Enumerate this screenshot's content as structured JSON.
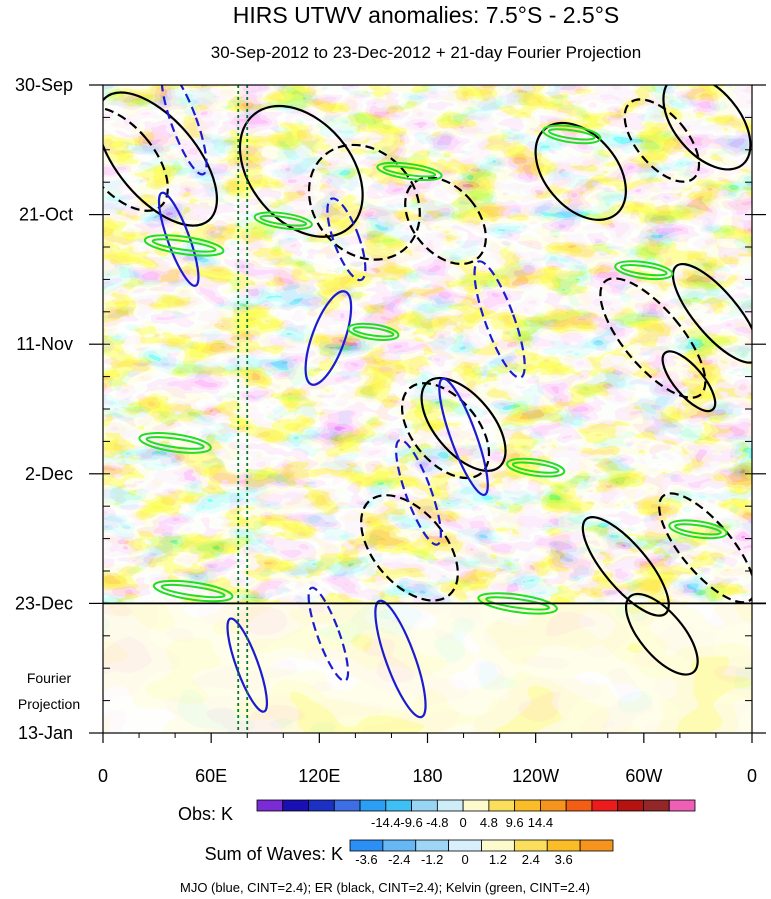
{
  "chart_data": {
    "type": "heatmap",
    "title": "HIRS UTWV anomalies: 7.5°S - 2.5°S",
    "subtitle": "30-Sep-2012 to 23-Dec-2012 + 21-day Fourier Projection",
    "x_ticks": [
      "0",
      "60E",
      "120E",
      "180",
      "120W",
      "60W",
      "0"
    ],
    "x_values_deg_east": [
      0,
      60,
      120,
      180,
      240,
      300,
      360
    ],
    "y_ticks": [
      "30-Sep",
      "21-Oct",
      "11-Nov",
      "2-Dec",
      "23-Dec",
      "13-Jan"
    ],
    "y_values_day": [
      0,
      21,
      42,
      63,
      84,
      105
    ],
    "projection_label": [
      "Fourier",
      "Projection"
    ],
    "projection_start_day": 84,
    "reference_lines_deg_east": [
      75,
      80
    ],
    "obs_colorbar": {
      "label": "Obs: K",
      "levels": [
        -14.4,
        -9.6,
        -4.8,
        0,
        4.8,
        9.6,
        14.4
      ],
      "level_labels": [
        "-14.4",
        "-9.6",
        "-4.8",
        "0",
        "4.8",
        "9.6",
        "14.4"
      ],
      "colors": [
        "#7a2bd6",
        "#1a0fb3",
        "#1c31c4",
        "#3d6ee6",
        "#2b9ff5",
        "#3fc0f5",
        "#98d5f5",
        "#cdeef9",
        "#fdfbce",
        "#fbdf5c",
        "#fbbd27",
        "#f7941d",
        "#f35e14",
        "#ec1c1c",
        "#b51212",
        "#932626",
        "#ee5fb5"
      ]
    },
    "waves_colorbar": {
      "label": "Sum of Waves: K",
      "levels": [
        -3.6,
        -2.4,
        -1.2,
        0,
        1.2,
        2.4,
        3.6
      ],
      "level_labels": [
        "-3.6",
        "-2.4",
        "-1.2",
        "0",
        "1.2",
        "2.4",
        "3.6"
      ],
      "colors": [
        "#2b8ff5",
        "#66b8f5",
        "#9fd5f5",
        "#d7f0fb",
        "#fdfbce",
        "#fbdf5c",
        "#fbbd27",
        "#f7941d"
      ]
    },
    "contour_legend": "MJO (blue, CINT=2.4); ER (black, CINT=2.4); Kelvin (green, CINT=2.4)",
    "series": [
      {
        "name": "MJO",
        "color": "#1c1ccf",
        "contour_interval": 2.4
      },
      {
        "name": "ER",
        "color": "#000000",
        "contour_interval": 2.4
      },
      {
        "name": "Kelvin",
        "color": "#22dd22",
        "contour_interval": 2.4
      }
    ],
    "observed_period": {
      "start": "30-Sep-2012",
      "end": "23-Dec-2012"
    },
    "features": [
      {
        "type": "ER",
        "sign": "pos",
        "lon": 30,
        "day": 12,
        "w": 22,
        "h": 13,
        "tilt": -1
      },
      {
        "type": "ER",
        "sign": "neg",
        "lon": 10,
        "day": 12,
        "w": 18,
        "h": 10,
        "tilt": -1
      },
      {
        "type": "ER",
        "sign": "pos",
        "lon": 110,
        "day": 14,
        "w": 28,
        "h": 12,
        "tilt": -1
      },
      {
        "type": "ER",
        "sign": "neg",
        "lon": 145,
        "day": 19,
        "w": 28,
        "h": 10,
        "tilt": -1
      },
      {
        "type": "ER",
        "sign": "pos",
        "lon": 265,
        "day": 14,
        "w": 20,
        "h": 9,
        "tilt": -1
      },
      {
        "type": "ER",
        "sign": "pos",
        "lon": 335,
        "day": 6,
        "w": 18,
        "h": 9,
        "tilt": -1
      },
      {
        "type": "ER",
        "sign": "neg",
        "lon": 310,
        "day": 9,
        "w": 14,
        "h": 8,
        "tilt": -1
      },
      {
        "type": "ER",
        "sign": "neg",
        "lon": 190,
        "day": 22,
        "w": 18,
        "h": 8,
        "tilt": -1
      },
      {
        "type": "ER",
        "sign": "pos",
        "lon": 340,
        "day": 37,
        "w": 12,
        "h": 10,
        "tilt": -1
      },
      {
        "type": "ER",
        "sign": "neg",
        "lon": 305,
        "day": 41,
        "w": 16,
        "h": 12,
        "tilt": -1
      },
      {
        "type": "ER",
        "sign": "pos",
        "lon": 200,
        "day": 55,
        "w": 16,
        "h": 9,
        "tilt": -1
      },
      {
        "type": "ER",
        "sign": "neg",
        "lon": 190,
        "day": 56,
        "w": 18,
        "h": 9,
        "tilt": -1
      },
      {
        "type": "ER",
        "sign": "pos",
        "lon": 325,
        "day": 48,
        "w": 8,
        "h": 6,
        "tilt": -1
      },
      {
        "type": "ER",
        "sign": "neg",
        "lon": 170,
        "day": 75,
        "w": 20,
        "h": 10,
        "tilt": -1
      },
      {
        "type": "ER",
        "sign": "pos",
        "lon": 290,
        "day": 78,
        "w": 12,
        "h": 10,
        "tilt": -1
      },
      {
        "type": "ER",
        "sign": "neg",
        "lon": 335,
        "day": 75,
        "w": 14,
        "h": 11,
        "tilt": -1
      },
      {
        "type": "ER",
        "sign": "pos",
        "lon": 310,
        "day": 89,
        "w": 12,
        "h": 8,
        "tilt": -1
      },
      {
        "type": "MJO",
        "sign": "neg",
        "lon": 45,
        "day": 6,
        "w": 7,
        "h": 9,
        "tilt": 1
      },
      {
        "type": "MJO",
        "sign": "pos",
        "lon": 42,
        "day": 25,
        "w": 6,
        "h": 8,
        "tilt": 1
      },
      {
        "type": "MJO",
        "sign": "neg",
        "lon": 135,
        "day": 25,
        "w": 7,
        "h": 7,
        "tilt": 1
      },
      {
        "type": "MJO",
        "sign": "pos",
        "lon": 125,
        "day": 41,
        "w": 9,
        "h": 8,
        "tilt": -1
      },
      {
        "type": "MJO",
        "sign": "neg",
        "lon": 220,
        "day": 38,
        "w": 8,
        "h": 10,
        "tilt": 1
      },
      {
        "type": "MJO",
        "sign": "pos",
        "lon": 200,
        "day": 57,
        "w": 7,
        "h": 10,
        "tilt": 1
      },
      {
        "type": "MJO",
        "sign": "neg",
        "lon": 175,
        "day": 66,
        "w": 7,
        "h": 9,
        "tilt": 1
      },
      {
        "type": "MJO",
        "sign": "pos",
        "lon": 80,
        "day": 94,
        "w": 6,
        "h": 8,
        "tilt": 1
      },
      {
        "type": "MJO",
        "sign": "pos",
        "lon": 165,
        "day": 93,
        "w": 8,
        "h": 10,
        "tilt": 1
      },
      {
        "type": "MJO",
        "sign": "neg",
        "lon": 125,
        "day": 89,
        "w": 6,
        "h": 8,
        "tilt": 1
      },
      {
        "type": "Kelvin",
        "sign": "pos",
        "lon": 45,
        "day": 26,
        "w": 22,
        "h": 1.4,
        "tilt": 1
      },
      {
        "type": "Kelvin",
        "sign": "pos",
        "lon": 100,
        "day": 22,
        "w": 16,
        "h": 1.2,
        "tilt": 1
      },
      {
        "type": "Kelvin",
        "sign": "pos",
        "lon": 170,
        "day": 14,
        "w": 18,
        "h": 1.2,
        "tilt": 1
      },
      {
        "type": "Kelvin",
        "sign": "pos",
        "lon": 260,
        "day": 8,
        "w": 16,
        "h": 1.3,
        "tilt": 1
      },
      {
        "type": "Kelvin",
        "sign": "pos",
        "lon": 300,
        "day": 30,
        "w": 16,
        "h": 1.3,
        "tilt": 1
      },
      {
        "type": "Kelvin",
        "sign": "pos",
        "lon": 150,
        "day": 40,
        "w": 14,
        "h": 1.2,
        "tilt": 1
      },
      {
        "type": "Kelvin",
        "sign": "pos",
        "lon": 40,
        "day": 58,
        "w": 20,
        "h": 1.4,
        "tilt": 1
      },
      {
        "type": "Kelvin",
        "sign": "pos",
        "lon": 240,
        "day": 62,
        "w": 16,
        "h": 1.3,
        "tilt": 1
      },
      {
        "type": "Kelvin",
        "sign": "pos",
        "lon": 330,
        "day": 72,
        "w": 16,
        "h": 1.3,
        "tilt": 1
      },
      {
        "type": "Kelvin",
        "sign": "pos",
        "lon": 50,
        "day": 82,
        "w": 22,
        "h": 1.4,
        "tilt": 1
      },
      {
        "type": "Kelvin",
        "sign": "pos",
        "lon": 230,
        "day": 84,
        "w": 22,
        "h": 1.4,
        "tilt": 1
      }
    ]
  }
}
